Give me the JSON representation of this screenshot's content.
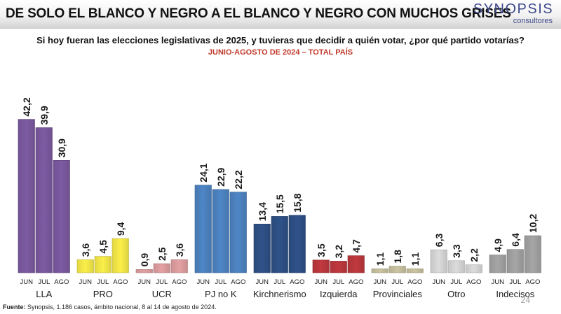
{
  "header": {
    "headline": "DE SOLO EL BLANCO Y NEGRO A EL BLANCO Y NEGRO CON MUCHOS GRISES",
    "logo_name": "SYNOPSIS",
    "logo_sub": "consultores"
  },
  "question": "Si hoy fueran las elecciones legislativas de 2025, y tuvieras que decidir a quién votar, ¿por qué partido votarías?",
  "subtitle": "JUNIO-AGOSTO DE 2024 – TOTAL PAÍS",
  "source": {
    "label": "Fuente:",
    "text": "Synopsis, 1.186 casos, ámbito nacional, 8 al 14 de agosto de 2024."
  },
  "page_number": "24",
  "chart_data": {
    "type": "bar",
    "title": "Si hoy fueran las elecciones legislativas de 2025, y tuvieras que decidir a quién votar, ¿por qué partido votarías?",
    "subtitle": "JUNIO-AGOSTO DE 2024 – TOTAL PAÍS",
    "months": [
      "JUN",
      "JUL",
      "AGO"
    ],
    "ylim": [
      0,
      45
    ],
    "grid": false,
    "groups": [
      {
        "name": "LLA",
        "values": [
          42.2,
          39.9,
          30.9
        ],
        "labels": [
          "42,2",
          "39,9",
          "30,9"
        ],
        "colors": [
          "#7e5ba3",
          "#7e5ba3",
          "#7e5ba3"
        ]
      },
      {
        "name": "PRO",
        "values": [
          3.6,
          4.5,
          9.4
        ],
        "labels": [
          "3,6",
          "4,5",
          "9,4"
        ],
        "colors": [
          "#fbef4a",
          "#fbef4a",
          "#fbef4a"
        ]
      },
      {
        "name": "UCR",
        "values": [
          0.9,
          2.5,
          3.6
        ],
        "labels": [
          "0,9",
          "2,5",
          "3,6"
        ],
        "colors": [
          "#e4a1a3",
          "#e4a1a3",
          "#e4a1a3"
        ]
      },
      {
        "name": "PJ no K",
        "values": [
          24.1,
          22.9,
          22.2
        ],
        "labels": [
          "24,1",
          "22,9",
          "22,2"
        ],
        "colors": [
          "#4f86c6",
          "#4f86c6",
          "#4f86c6"
        ]
      },
      {
        "name": "Kirchnerismo",
        "values": [
          13.4,
          15.5,
          15.8
        ],
        "labels": [
          "13,4",
          "15,5",
          "15,8"
        ],
        "colors": [
          "#2f5289",
          "#2f5289",
          "#2f5289"
        ]
      },
      {
        "name": "Izquierda",
        "values": [
          3.5,
          3.2,
          4.7
        ],
        "labels": [
          "3,5",
          "3,2",
          "4,7"
        ],
        "colors": [
          "#c0393e",
          "#c0393e",
          "#c0393e"
        ]
      },
      {
        "name": "Provinciales",
        "values": [
          1.1,
          1.8,
          1.1
        ],
        "labels": [
          "1,1",
          "1,8",
          "1,1"
        ],
        "colors": [
          "#cbc5a2",
          "#cbc5a2",
          "#cbc5a2"
        ]
      },
      {
        "name": "Otro",
        "values": [
          6.3,
          3.3,
          2.2
        ],
        "labels": [
          "6,3",
          "3,3",
          "2,2"
        ],
        "colors": [
          "#dcdcdc",
          "#dcdcdc",
          "#dcdcdc"
        ]
      },
      {
        "name": "Indecisos",
        "values": [
          4.9,
          6.4,
          10.2
        ],
        "labels": [
          "4,9",
          "6,4",
          "10,2"
        ],
        "colors": [
          "#a6a6a6",
          "#a6a6a6",
          "#a6a6a6"
        ]
      }
    ]
  }
}
